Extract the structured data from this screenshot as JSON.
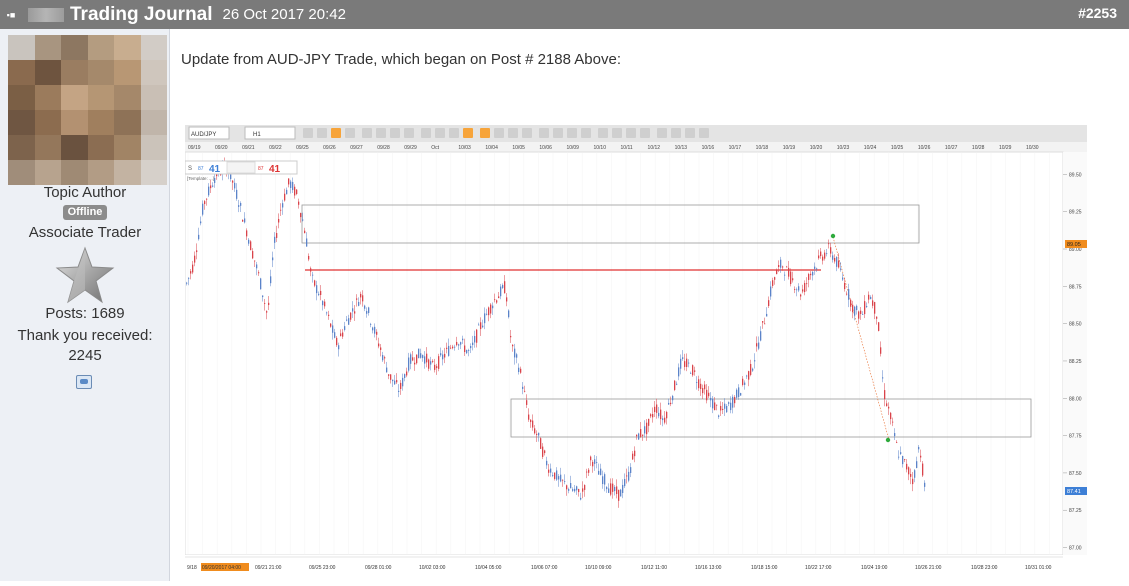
{
  "header": {
    "title": "Trading Journal",
    "date": "26 Oct 2017 20:42",
    "post_number": "#2253"
  },
  "author": {
    "role": "Topic Author",
    "status": "Offline",
    "rank": "Associate Trader",
    "posts": "Posts: 1689",
    "thanks_label": "Thank you received:",
    "thanks_count": "2245"
  },
  "post": {
    "text": "Update from AUD-JPY Trade, which began on Post # 2188 Above:"
  },
  "chart_toolbar": {
    "symbol": "AUD/JPY",
    "timeframe": "H1",
    "sell_label": "S",
    "sell_small": "87",
    "sell_big": "41",
    "buy_small": "87",
    "buy_big": "41",
    "template": "[Template: ...]"
  },
  "chart_data": {
    "type": "candlestick",
    "top_ticks": [
      "09/19",
      "09/20",
      "09/21",
      "09/22",
      "09/25",
      "09/26",
      "09/27",
      "09/28",
      "09/29",
      "Oct",
      "10/03",
      "10/04",
      "10/05",
      "10/06",
      "10/09",
      "10/10",
      "10/11",
      "10/12",
      "10/13",
      "10/16",
      "10/17",
      "10/18",
      "10/19",
      "10/20",
      "10/23",
      "10/24",
      "10/25",
      "10/26",
      "10/27",
      "10/28",
      "10/29",
      "10/30"
    ],
    "bottom_ticks": [
      "9/18",
      "09/20/2017 04:00",
      "09/21 21:00",
      "09/25 23:00",
      "09/28 01:00",
      "10/02 03:00",
      "10/04 05:00",
      "10/06 07:00",
      "10/10 09:00",
      "10/12 11:00",
      "10/16 13:00",
      "10/18 15:00",
      "10/22 17:00",
      "10/24 19:00",
      "10/26 21:00",
      "10/28 23:00",
      "10/31 01:00"
    ],
    "y_ticks": [
      "89.50",
      "89.25",
      "89.00",
      "88.75",
      "88.50",
      "88.25",
      "88.00",
      "87.75",
      "87.50",
      "87.25",
      "87.00"
    ],
    "current_price_label": "87.41",
    "marker_price_label": "89.05",
    "ylim": [
      86.95,
      89.65
    ]
  }
}
